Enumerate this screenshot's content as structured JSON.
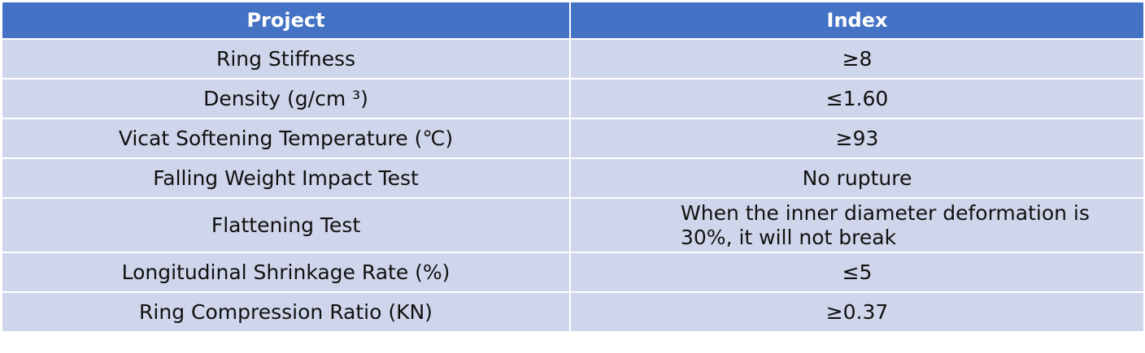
{
  "header": {
    "project": "Project",
    "index": "Index"
  },
  "rows": [
    {
      "project": "Ring Stiffness",
      "index": "≥8"
    },
    {
      "project": "Density (g/cm ³)",
      "index": "≤1.60"
    },
    {
      "project": "Vicat Softening Temperature (℃)",
      "index": "≥93"
    },
    {
      "project": "Falling Weight Impact Test",
      "index": "No rupture"
    },
    {
      "project": "Flattening Test",
      "index": "When the inner diameter deformation is 30%, it will not break"
    },
    {
      "project": "Longitudinal Shrinkage Rate (%)",
      "index": "≤5"
    },
    {
      "project": "Ring Compression Ratio (KN)",
      "index": "≥0.37"
    }
  ],
  "colors": {
    "header_bg": "#4472c4",
    "row_bg": "#cfd5ea",
    "header_text": "#ffffff"
  }
}
